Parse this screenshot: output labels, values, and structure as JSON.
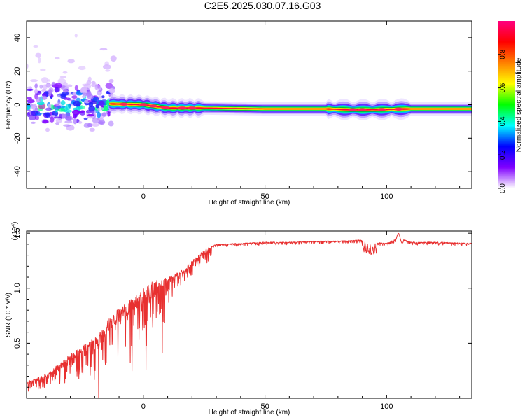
{
  "title": "C2E5.2025.030.07.16.G03",
  "chart_data": [
    {
      "type": "heatmap",
      "title": "C2E5.2025.030.07.16.G03",
      "xlabel": "Height of straight line (km)",
      "ylabel": "Frequency (Hz)",
      "xlim": [
        -48,
        135
      ],
      "ylim": [
        -50,
        50
      ],
      "x_ticks": [
        0,
        50,
        100
      ],
      "y_ticks": [
        -40,
        -20,
        0,
        20,
        40
      ],
      "colorbar": {
        "label": "Normalized spectral amplitude",
        "range": [
          0.0,
          1.0
        ],
        "ticks": [
          "0.0",
          "0.2",
          "0.4",
          "0.6",
          "0.8"
        ],
        "tick_values": [
          0.0,
          0.2,
          0.4,
          0.6,
          0.8
        ],
        "colors": [
          "#ffffff",
          "#8000ff",
          "#0000ff",
          "#00ffff",
          "#00ff00",
          "#ffff00",
          "#ff8000",
          "#ff0000",
          "#ff0080"
        ]
      },
      "ridge": {
        "x": [
          -14,
          0,
          10,
          25,
          50,
          75,
          85,
          95,
          110,
          135
        ],
        "frequency_hz": [
          0.5,
          0.0,
          -2.0,
          -2.0,
          -2.5,
          -2.5,
          -3.0,
          -3.0,
          -2.5,
          -2.5
        ]
      }
    },
    {
      "type": "line",
      "xlabel": "Height of straight line (km)",
      "ylabel": "SNR (10 * v/v)",
      "y_multiplier": "(x10^4)",
      "xlim": [
        -48,
        135
      ],
      "ylim": [
        0,
        1.52
      ],
      "x_ticks": [
        0,
        50,
        100
      ],
      "y_ticks": [
        0.5,
        1.0,
        1.5
      ],
      "y_tick_labels": [
        "0.5",
        "1.0",
        "1.5"
      ],
      "color": "#e83030",
      "series": [
        {
          "x": [
            -48,
            -40,
            -30,
            -20,
            -15,
            -10,
            -5,
            0,
            5,
            10,
            15,
            20,
            25,
            30,
            40,
            50,
            60,
            70,
            80,
            90,
            95,
            100,
            105,
            110,
            120,
            135
          ],
          "values": [
            0.15,
            0.22,
            0.4,
            0.55,
            0.7,
            0.82,
            0.9,
            1.0,
            1.08,
            1.1,
            1.15,
            1.25,
            1.35,
            1.4,
            1.41,
            1.42,
            1.42,
            1.43,
            1.43,
            1.44,
            1.42,
            1.41,
            1.46,
            1.42,
            1.42,
            1.41
          ]
        }
      ]
    }
  ]
}
